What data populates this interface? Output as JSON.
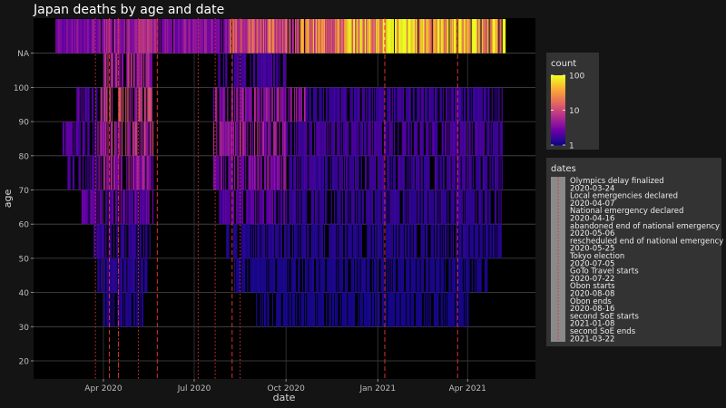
{
  "chart_data": {
    "type": "heatmap",
    "title": "Japan deaths by age and date",
    "xlabel": "date",
    "ylabel": "age",
    "x_range": [
      "2020-01-22",
      "2021-06-08"
    ],
    "x_ticks": [
      {
        "date": "2020-04-01",
        "label": "Apr 2020"
      },
      {
        "date": "2020-07-01",
        "label": "Jul 2020"
      },
      {
        "date": "2020-10-01",
        "label": "Oct 2020"
      },
      {
        "date": "2021-01-01",
        "label": "Jan 2021"
      },
      {
        "date": "2021-04-01",
        "label": "Apr 2021"
      }
    ],
    "y_ticks": [
      "20",
      "30",
      "40",
      "50",
      "60",
      "70",
      "80",
      "90",
      "100",
      "NA"
    ],
    "color_scale": {
      "title": "count",
      "scale": "log",
      "ticks": [
        "1",
        "10",
        "100"
      ],
      "min": 1,
      "max": 100,
      "palette": [
        "#0d0887",
        "#6a00a8",
        "#b12a90",
        "#e16462",
        "#fca636",
        "#f0f921"
      ]
    },
    "vline_legend_title": "dates",
    "vline_color": "#e03030",
    "events": [
      {
        "label": "Olympics delay finalized",
        "date": "2020-03-24",
        "style": "dotted"
      },
      {
        "label": "Local emergencies declared",
        "date": "2020-04-07",
        "style": "dashed"
      },
      {
        "label": "National emergency declared",
        "date": "2020-04-16",
        "style": "dashdot"
      },
      {
        "label": "abandoned end of national emergency",
        "date": "2020-05-06",
        "style": "dotted"
      },
      {
        "label": "rescheduled end of national emergency",
        "date": "2020-05-25",
        "style": "dashed"
      },
      {
        "label": "Tokyo election",
        "date": "2020-07-05",
        "style": "dotted"
      },
      {
        "label": "GoTo Travel starts",
        "date": "2020-07-22",
        "style": "dotted"
      },
      {
        "label": "Obon starts",
        "date": "2020-08-08",
        "style": "dashed"
      },
      {
        "label": "Obon ends",
        "date": "2020-08-16",
        "style": "dotted"
      },
      {
        "label": "second SoE starts",
        "date": "2021-01-08",
        "style": "dashed"
      },
      {
        "label": "second SoE ends",
        "date": "2021-03-22",
        "style": "dashed"
      }
    ],
    "bands": [
      {
        "y": "NA",
        "segments": [
          {
            "from": "2020-02-13",
            "to": "2020-03-31",
            "level": 0.25
          },
          {
            "from": "2020-04-01",
            "to": "2020-05-25",
            "level": 0.38
          },
          {
            "from": "2020-05-26",
            "to": "2020-08-05",
            "level": 0.28
          },
          {
            "from": "2020-08-06",
            "to": "2020-10-15",
            "level": 0.55
          },
          {
            "from": "2020-10-16",
            "to": "2020-11-30",
            "level": 0.65
          },
          {
            "from": "2020-12-01",
            "to": "2020-12-31",
            "level": 0.8
          },
          {
            "from": "2021-01-01",
            "to": "2021-02-15",
            "level": 0.95
          },
          {
            "from": "2021-02-16",
            "to": "2021-05-08",
            "level": 0.85
          }
        ]
      },
      {
        "y": "100",
        "segments": [
          {
            "from": "2020-04-01",
            "to": "2020-05-20",
            "level": 0.35
          },
          {
            "from": "2020-07-25",
            "to": "2020-09-30",
            "level": 0.12
          }
        ]
      },
      {
        "y": "90",
        "segments": [
          {
            "from": "2020-03-05",
            "to": "2020-03-25",
            "level": 0.15
          },
          {
            "from": "2020-03-26",
            "to": "2020-05-20",
            "level": 0.45
          },
          {
            "from": "2020-07-20",
            "to": "2020-10-20",
            "level": 0.3
          },
          {
            "from": "2020-10-21",
            "to": "2021-05-05",
            "level": 0.1
          }
        ]
      },
      {
        "y": "80",
        "segments": [
          {
            "from": "2020-02-20",
            "to": "2020-03-25",
            "level": 0.15
          },
          {
            "from": "2020-03-26",
            "to": "2020-05-20",
            "level": 0.4
          },
          {
            "from": "2020-07-20",
            "to": "2020-09-30",
            "level": 0.3
          },
          {
            "from": "2020-10-01",
            "to": "2021-05-05",
            "level": 0.12
          }
        ]
      },
      {
        "y": "70",
        "segments": [
          {
            "from": "2020-02-25",
            "to": "2020-03-25",
            "level": 0.12
          },
          {
            "from": "2020-03-26",
            "to": "2020-05-20",
            "level": 0.3
          },
          {
            "from": "2020-07-20",
            "to": "2020-09-30",
            "level": 0.25
          },
          {
            "from": "2020-10-01",
            "to": "2021-05-05",
            "level": 0.1
          }
        ]
      },
      {
        "y": "60",
        "segments": [
          {
            "from": "2020-03-10",
            "to": "2020-05-20",
            "level": 0.18
          },
          {
            "from": "2020-07-25",
            "to": "2020-09-30",
            "level": 0.15
          },
          {
            "from": "2020-10-01",
            "to": "2021-05-05",
            "level": 0.08
          }
        ]
      },
      {
        "y": "50",
        "segments": [
          {
            "from": "2020-03-20",
            "to": "2020-05-20",
            "level": 0.08
          },
          {
            "from": "2020-08-01",
            "to": "2021-05-05",
            "level": 0.05
          }
        ]
      },
      {
        "y": "40",
        "segments": [
          {
            "from": "2020-03-25",
            "to": "2020-05-15",
            "level": 0.06
          },
          {
            "from": "2020-08-10",
            "to": "2021-04-20",
            "level": 0.03
          }
        ]
      },
      {
        "y": "30",
        "segments": [
          {
            "from": "2020-04-01",
            "to": "2020-05-10",
            "level": 0.04
          },
          {
            "from": "2020-09-01",
            "to": "2021-04-01",
            "level": 0.02
          }
        ]
      }
    ]
  }
}
